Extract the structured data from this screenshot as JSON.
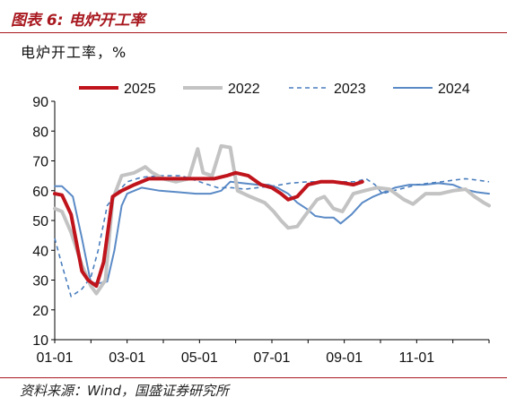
{
  "header": {
    "title": "图表 6:  电炉开工率"
  },
  "unit_label": "电炉开工率，%",
  "source": "资料来源：Wind，国盛证券研究所",
  "chart_data": {
    "type": "line",
    "title": "",
    "xlabel": "",
    "ylabel": "",
    "ylim": [
      10,
      90
    ],
    "yticks": [
      10,
      20,
      30,
      40,
      50,
      60,
      70,
      80,
      90
    ],
    "x_range_month": [
      1,
      13
    ],
    "xticks": [
      {
        "month": 1,
        "label": "01-01"
      },
      {
        "month": 3,
        "label": "03-01"
      },
      {
        "month": 5,
        "label": "05-01"
      },
      {
        "month": 7,
        "label": "07-01"
      },
      {
        "month": 9,
        "label": "09-01"
      },
      {
        "month": 11,
        "label": "11-01"
      }
    ],
    "grid": false,
    "legend": "top",
    "series": [
      {
        "name": "2025",
        "color": "#c0141c",
        "style": "solid",
        "width": 4,
        "points": [
          [
            1.0,
            59
          ],
          [
            1.2,
            58.5
          ],
          [
            1.45,
            52
          ],
          [
            1.75,
            33
          ],
          [
            1.92,
            30
          ],
          [
            2.15,
            28
          ],
          [
            2.35,
            36
          ],
          [
            2.6,
            58
          ],
          [
            2.85,
            60
          ],
          [
            3.2,
            62
          ],
          [
            3.6,
            64
          ],
          [
            4.0,
            64
          ],
          [
            4.5,
            64
          ],
          [
            5.0,
            64
          ],
          [
            5.4,
            64
          ],
          [
            5.75,
            65
          ],
          [
            6.0,
            66
          ],
          [
            6.35,
            65
          ],
          [
            6.7,
            62
          ],
          [
            7.0,
            61
          ],
          [
            7.25,
            59
          ],
          [
            7.45,
            57
          ],
          [
            7.7,
            58
          ],
          [
            8.0,
            62
          ],
          [
            8.35,
            63
          ],
          [
            8.7,
            63
          ],
          [
            9.0,
            62.5
          ],
          [
            9.25,
            62
          ],
          [
            9.5,
            63
          ]
        ]
      },
      {
        "name": "2022",
        "color": "#c3c3c3",
        "style": "solid",
        "width": 4,
        "points": [
          [
            1.0,
            54
          ],
          [
            1.2,
            53
          ],
          [
            1.45,
            46
          ],
          [
            1.75,
            35
          ],
          [
            2.0,
            28
          ],
          [
            2.15,
            25.5
          ],
          [
            2.4,
            30
          ],
          [
            2.6,
            57
          ],
          [
            2.85,
            65
          ],
          [
            3.2,
            66
          ],
          [
            3.5,
            68
          ],
          [
            3.7,
            66
          ],
          [
            4.0,
            64
          ],
          [
            4.35,
            63
          ],
          [
            4.7,
            64
          ],
          [
            4.95,
            74
          ],
          [
            5.1,
            66
          ],
          [
            5.35,
            65
          ],
          [
            5.6,
            75
          ],
          [
            5.85,
            74.5
          ],
          [
            6.05,
            60
          ],
          [
            6.4,
            58
          ],
          [
            6.8,
            56
          ],
          [
            7.05,
            53
          ],
          [
            7.25,
            50
          ],
          [
            7.45,
            47.5
          ],
          [
            7.7,
            48
          ],
          [
            8.0,
            53
          ],
          [
            8.25,
            57
          ],
          [
            8.45,
            58
          ],
          [
            8.7,
            54
          ],
          [
            8.95,
            53
          ],
          [
            9.25,
            59
          ],
          [
            9.55,
            60
          ],
          [
            9.9,
            61
          ],
          [
            10.25,
            60.5
          ],
          [
            10.65,
            57
          ],
          [
            10.9,
            55.5
          ],
          [
            11.25,
            59
          ],
          [
            11.65,
            59
          ],
          [
            12.0,
            60
          ],
          [
            12.35,
            60.5
          ],
          [
            12.6,
            58
          ],
          [
            12.85,
            56
          ],
          [
            13.0,
            55
          ]
        ]
      },
      {
        "name": "2023",
        "color": "#4a7ebd",
        "style": "dashed",
        "width": 1.6,
        "points": [
          [
            1.0,
            44
          ],
          [
            1.2,
            35
          ],
          [
            1.45,
            24.5
          ],
          [
            1.75,
            27
          ],
          [
            2.0,
            31
          ],
          [
            2.2,
            40
          ],
          [
            2.45,
            55
          ],
          [
            2.7,
            59
          ],
          [
            3.0,
            63
          ],
          [
            3.4,
            64.5
          ],
          [
            3.9,
            65
          ],
          [
            4.5,
            65
          ],
          [
            5.0,
            63
          ],
          [
            5.5,
            61
          ],
          [
            5.9,
            61
          ],
          [
            6.25,
            60.5
          ],
          [
            6.6,
            61
          ],
          [
            7.0,
            61.5
          ],
          [
            7.5,
            62.5
          ],
          [
            8.0,
            63
          ],
          [
            8.5,
            63
          ],
          [
            9.0,
            63
          ],
          [
            9.3,
            63
          ],
          [
            9.6,
            64
          ],
          [
            9.85,
            62
          ],
          [
            10.05,
            59
          ],
          [
            10.35,
            60
          ],
          [
            10.7,
            61
          ],
          [
            11.0,
            62
          ],
          [
            11.35,
            62.5
          ],
          [
            11.7,
            63
          ],
          [
            12.0,
            63.5
          ],
          [
            12.35,
            64
          ],
          [
            12.7,
            63.5
          ],
          [
            13.0,
            63
          ]
        ]
      },
      {
        "name": "2024",
        "color": "#5a8ac6",
        "style": "solid",
        "width": 2,
        "points": [
          [
            1.0,
            61.5
          ],
          [
            1.2,
            61.5
          ],
          [
            1.5,
            58
          ],
          [
            1.75,
            44
          ],
          [
            2.0,
            29
          ],
          [
            2.25,
            29
          ],
          [
            2.45,
            29.5
          ],
          [
            2.65,
            40
          ],
          [
            2.85,
            55
          ],
          [
            3.0,
            59
          ],
          [
            3.4,
            61
          ],
          [
            3.9,
            60
          ],
          [
            4.4,
            59.5
          ],
          [
            4.9,
            59
          ],
          [
            5.3,
            59
          ],
          [
            5.6,
            60
          ],
          [
            5.85,
            63
          ],
          [
            6.2,
            62.5
          ],
          [
            6.6,
            62
          ],
          [
            6.9,
            62
          ],
          [
            7.15,
            61
          ],
          [
            7.45,
            59
          ],
          [
            7.7,
            56
          ],
          [
            7.95,
            54
          ],
          [
            8.2,
            51.5
          ],
          [
            8.45,
            51
          ],
          [
            8.7,
            51
          ],
          [
            8.9,
            49
          ],
          [
            9.2,
            52
          ],
          [
            9.5,
            56
          ],
          [
            9.8,
            58
          ],
          [
            10.1,
            59.5
          ],
          [
            10.4,
            61
          ],
          [
            10.8,
            62
          ],
          [
            11.2,
            62
          ],
          [
            11.6,
            62.5
          ],
          [
            12.0,
            62
          ],
          [
            12.3,
            60.5
          ],
          [
            12.65,
            59.5
          ],
          [
            13.0,
            59
          ]
        ]
      }
    ]
  }
}
